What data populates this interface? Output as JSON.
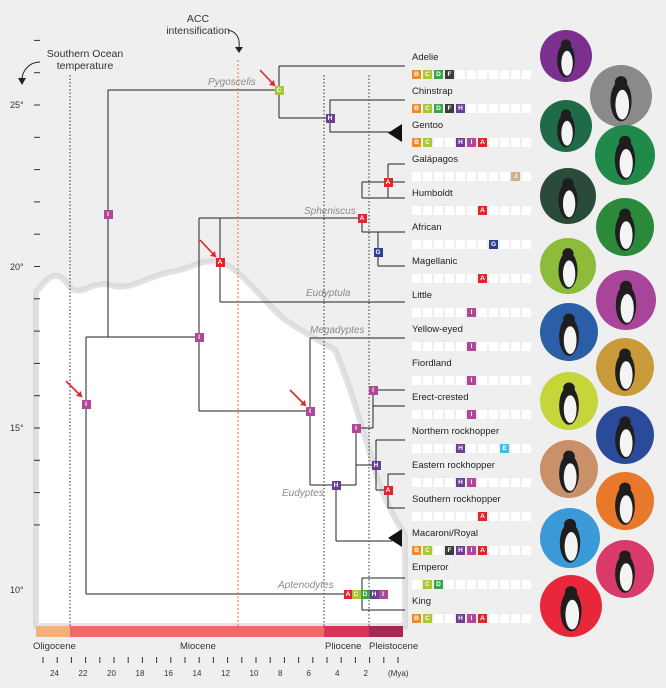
{
  "annotations": {
    "acc": [
      "ACC",
      "intensification"
    ],
    "temperature": [
      "Southern Ocean",
      "temperature"
    ]
  },
  "y_axis": [
    "25°",
    "20°",
    "15°",
    "10°"
  ],
  "clades": [
    "Pygoscelis",
    "Spheniscus",
    "Eudyptula",
    "Megadyptes",
    "Eudyptes",
    "Aptenodytes"
  ],
  "species": [
    {
      "name": "Adelie",
      "codes": [
        "B",
        "C",
        "D",
        "F"
      ]
    },
    {
      "name": "Chinstrap",
      "codes": [
        "B",
        "C",
        "D",
        "F",
        "H"
      ]
    },
    {
      "name": "Gentoo",
      "codes": [
        "B",
        "C",
        "",
        "",
        "H",
        "I",
        "A"
      ]
    },
    {
      "name": "Galápagos",
      "codes": [
        "",
        "",
        "",
        "",
        "",
        "",
        "",
        "",
        "",
        "J"
      ]
    },
    {
      "name": "Humboldt",
      "codes": [
        "",
        "",
        "",
        "",
        "",
        "",
        "A"
      ]
    },
    {
      "name": "African",
      "codes": [
        "",
        "",
        "",
        "",
        "",
        "",
        "",
        "G"
      ]
    },
    {
      "name": "Magellanic",
      "codes": [
        "",
        "",
        "",
        "",
        "",
        "",
        "A"
      ]
    },
    {
      "name": "Little",
      "codes": [
        "",
        "",
        "",
        "",
        "",
        "I"
      ]
    },
    {
      "name": "Yellow-eyed",
      "codes": [
        "",
        "",
        "",
        "",
        "",
        "I"
      ]
    },
    {
      "name": "Fiordland",
      "codes": [
        "",
        "",
        "",
        "",
        "",
        "I"
      ]
    },
    {
      "name": "Erect-crested",
      "codes": [
        "",
        "",
        "",
        "",
        "",
        "I"
      ]
    },
    {
      "name": "Northern rockhopper",
      "codes": [
        "",
        "",
        "",
        "",
        "H",
        "",
        "",
        "",
        "E"
      ]
    },
    {
      "name": "Eastern rockhopper",
      "codes": [
        "",
        "",
        "",
        "",
        "H",
        "I"
      ]
    },
    {
      "name": "Southern rockhopper",
      "codes": [
        "",
        "",
        "",
        "",
        "",
        "",
        "A"
      ]
    },
    {
      "name": "Macaroni/Royal",
      "codes": [
        "B",
        "C",
        "",
        "F",
        "H",
        "I",
        "A"
      ]
    },
    {
      "name": "Emperor",
      "codes": [
        "",
        "C",
        "D"
      ]
    },
    {
      "name": "King",
      "codes": [
        "B",
        "C",
        "",
        "",
        "H",
        "I",
        "A"
      ]
    }
  ],
  "code_colors": {
    "A": "#e0262b",
    "B": "#f08a2a",
    "C": "#a9c63a",
    "D": "#3aa64a",
    "E": "#4db8e8",
    "F": "#3b3b3b",
    "G": "#2a3f8f",
    "H": "#6a3d96",
    "I": "#b2479a",
    "J": "#cfb08a"
  },
  "nodes": [
    {
      "code": "C"
    },
    {
      "code": "H"
    },
    {
      "code": "A"
    },
    {
      "code": "A"
    },
    {
      "code": "G"
    },
    {
      "code": "A"
    },
    {
      "code": "I"
    },
    {
      "code": "I"
    },
    {
      "code": "I"
    },
    {
      "code": "I"
    },
    {
      "code": "I"
    },
    {
      "code": "I"
    },
    {
      "code": "H"
    },
    {
      "code": "A"
    },
    {
      "code": "H"
    },
    {
      "code": "A"
    },
    {
      "code": "C"
    },
    {
      "code": "D"
    },
    {
      "code": "H"
    },
    {
      "code": "I"
    }
  ],
  "epochs": [
    "Oligocene",
    "Miocene",
    "Pliocene",
    "Pleistocene"
  ],
  "x_ticks": [
    "24",
    "22",
    "20",
    "18",
    "16",
    "14",
    "12",
    "10",
    "8",
    "6",
    "4",
    "2",
    "(Mya)"
  ],
  "photo_colors": [
    "#7b2f8f",
    "#8a8a8a",
    "#1f6b48",
    "#1f8a4a",
    "#2a4a3a",
    "#2a8a3a",
    "#8dbb3a",
    "#a8449a",
    "#2a5fa8",
    "#c99a3a",
    "#c4d63a",
    "#2a4a9a",
    "#c9906a",
    "#e8782a",
    "#3a9ad8",
    "#d83a6a",
    "#e8283a"
  ]
}
